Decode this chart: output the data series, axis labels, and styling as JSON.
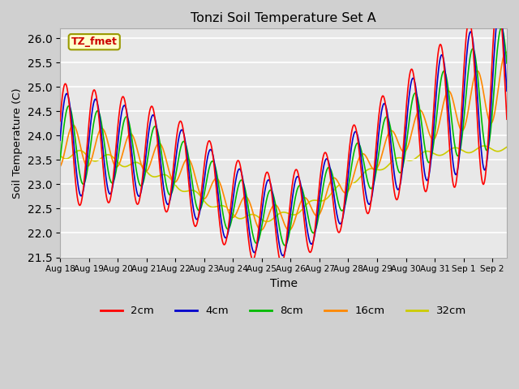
{
  "title": "Tonzi Soil Temperature Set A",
  "xlabel": "Time",
  "ylabel": "Soil Temperature (C)",
  "ylim": [
    21.5,
    26.2
  ],
  "fig_facecolor": "#d0d0d0",
  "axes_facecolor": "#e8e8e8",
  "legend_label": "TZ_fmet",
  "series_colors": {
    "2cm": "#ff0000",
    "4cm": "#0000cc",
    "8cm": "#00bb00",
    "16cm": "#ff8800",
    "32cm": "#cccc00"
  },
  "yticks": [
    21.5,
    22.0,
    22.5,
    23.0,
    23.5,
    24.0,
    24.5,
    25.0,
    25.5,
    26.0
  ],
  "n_points": 800
}
